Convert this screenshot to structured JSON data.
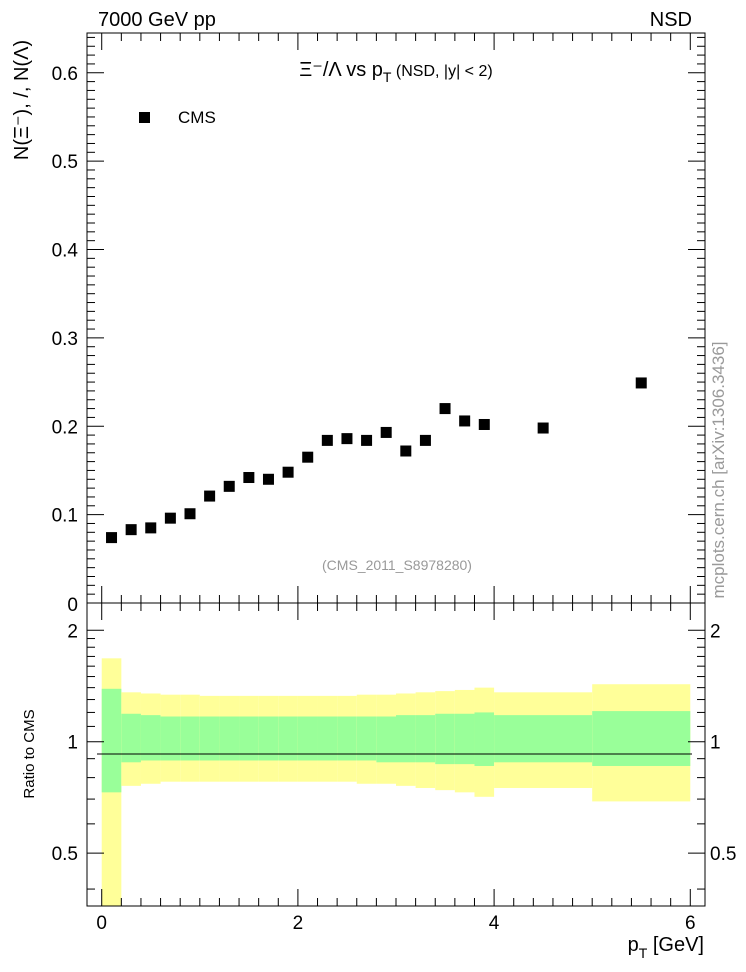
{
  "header": {
    "left": "7000 GeV pp",
    "right": "NSD"
  },
  "side_label": "mcplots.cern.ch [arXiv:1306.3436]",
  "colors": {
    "band_inner": "#99ff99",
    "band_outer": "#ffff99",
    "marker": "#000000",
    "ref_id": "#999999"
  },
  "chart_data": [
    {
      "type": "scatter",
      "panel": "main",
      "title": {
        "main": "Ξ⁻/Λ  vs p",
        "sub": "T",
        "tail": " (NSD, |y| < 2)"
      },
      "ylabel": "N(Ξ⁻), /, N(Λ)",
      "ylim": [
        0,
        0.645
      ],
      "yticks": [
        0.1,
        0.2,
        0.3,
        0.4,
        0.5,
        0.6
      ],
      "ytick_labels": [
        "0.1",
        "0.2",
        "0.3",
        "0.4",
        "0.5",
        "0.6"
      ],
      "y_bottom_label": "0",
      "legend": {
        "label": "CMS",
        "position": "top-left"
      },
      "ref_id": "(CMS_2011_S8978280)",
      "series": [
        {
          "name": "CMS",
          "x": [
            0.1,
            0.3,
            0.5,
            0.7,
            0.9,
            1.1,
            1.3,
            1.5,
            1.7,
            1.9,
            2.1,
            2.3,
            2.5,
            2.7,
            2.9,
            3.1,
            3.3,
            3.5,
            3.7,
            3.9,
            4.5,
            5.5
          ],
          "y": [
            0.074,
            0.083,
            0.085,
            0.096,
            0.101,
            0.121,
            0.132,
            0.142,
            0.14,
            0.148,
            0.165,
            0.184,
            0.186,
            0.184,
            0.193,
            0.172,
            0.184,
            0.22,
            0.206,
            0.202,
            0.198,
            0.249
          ]
        }
      ]
    },
    {
      "type": "area",
      "panel": "ratio",
      "ylabel": "Ratio to CMS",
      "xlabel": {
        "main": "p",
        "sub": "T",
        "tail": " [GeV]"
      },
      "xlim": [
        -0.15,
        6.15
      ],
      "ylim": [
        0.36,
        2.37
      ],
      "xticks": [
        0,
        2,
        4,
        6
      ],
      "xtick_labels": [
        "0",
        "2",
        "4",
        "6"
      ],
      "yticks": [
        0.5,
        1,
        2
      ],
      "ytick_labels": [
        "0.5",
        "1",
        "2"
      ],
      "bins": [
        {
          "lo": 0.0,
          "hi": 0.2,
          "inner": [
            0.73,
            1.39
          ],
          "outer": [
            0.3,
            1.68
          ]
        },
        {
          "lo": 0.2,
          "hi": 0.4,
          "inner": [
            0.88,
            1.19
          ],
          "outer": [
            0.76,
            1.36
          ]
        },
        {
          "lo": 0.4,
          "hi": 0.6,
          "inner": [
            0.89,
            1.18
          ],
          "outer": [
            0.77,
            1.35
          ]
        },
        {
          "lo": 0.6,
          "hi": 0.8,
          "inner": [
            0.89,
            1.17
          ],
          "outer": [
            0.78,
            1.34
          ]
        },
        {
          "lo": 0.8,
          "hi": 1.0,
          "inner": [
            0.89,
            1.17
          ],
          "outer": [
            0.78,
            1.34
          ]
        },
        {
          "lo": 1.0,
          "hi": 1.2,
          "inner": [
            0.89,
            1.17
          ],
          "outer": [
            0.78,
            1.33
          ]
        },
        {
          "lo": 1.2,
          "hi": 1.4,
          "inner": [
            0.89,
            1.17
          ],
          "outer": [
            0.78,
            1.33
          ]
        },
        {
          "lo": 1.4,
          "hi": 1.6,
          "inner": [
            0.89,
            1.17
          ],
          "outer": [
            0.78,
            1.33
          ]
        },
        {
          "lo": 1.6,
          "hi": 1.8,
          "inner": [
            0.89,
            1.17
          ],
          "outer": [
            0.78,
            1.33
          ]
        },
        {
          "lo": 1.8,
          "hi": 2.0,
          "inner": [
            0.89,
            1.17
          ],
          "outer": [
            0.78,
            1.33
          ]
        },
        {
          "lo": 2.0,
          "hi": 2.2,
          "inner": [
            0.89,
            1.17
          ],
          "outer": [
            0.78,
            1.33
          ]
        },
        {
          "lo": 2.2,
          "hi": 2.4,
          "inner": [
            0.89,
            1.17
          ],
          "outer": [
            0.78,
            1.33
          ]
        },
        {
          "lo": 2.4,
          "hi": 2.6,
          "inner": [
            0.89,
            1.17
          ],
          "outer": [
            0.78,
            1.33
          ]
        },
        {
          "lo": 2.6,
          "hi": 2.8,
          "inner": [
            0.89,
            1.17
          ],
          "outer": [
            0.77,
            1.34
          ]
        },
        {
          "lo": 2.8,
          "hi": 3.0,
          "inner": [
            0.88,
            1.17
          ],
          "outer": [
            0.77,
            1.34
          ]
        },
        {
          "lo": 3.0,
          "hi": 3.2,
          "inner": [
            0.88,
            1.18
          ],
          "outer": [
            0.76,
            1.35
          ]
        },
        {
          "lo": 3.2,
          "hi": 3.4,
          "inner": [
            0.88,
            1.18
          ],
          "outer": [
            0.75,
            1.36
          ]
        },
        {
          "lo": 3.4,
          "hi": 3.6,
          "inner": [
            0.87,
            1.19
          ],
          "outer": [
            0.74,
            1.37
          ]
        },
        {
          "lo": 3.6,
          "hi": 3.8,
          "inner": [
            0.87,
            1.19
          ],
          "outer": [
            0.73,
            1.38
          ]
        },
        {
          "lo": 3.8,
          "hi": 4.0,
          "inner": [
            0.86,
            1.2
          ],
          "outer": [
            0.71,
            1.4
          ]
        },
        {
          "lo": 4.0,
          "hi": 5.0,
          "inner": [
            0.88,
            1.18
          ],
          "outer": [
            0.75,
            1.36
          ]
        },
        {
          "lo": 5.0,
          "hi": 6.0,
          "inner": [
            0.86,
            1.21
          ],
          "outer": [
            0.69,
            1.43
          ]
        }
      ]
    }
  ]
}
